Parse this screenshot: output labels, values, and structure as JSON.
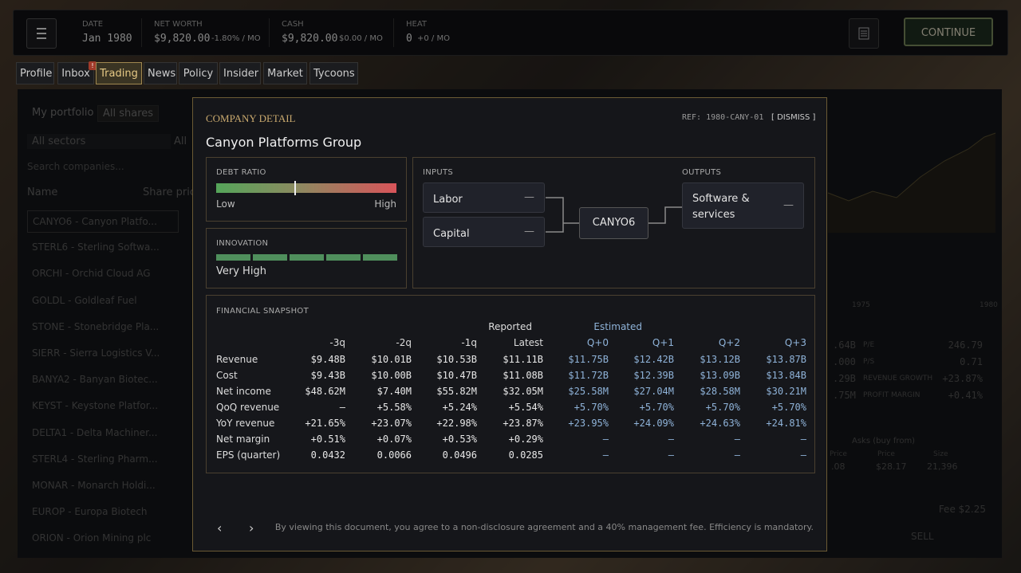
{
  "top_bar": {
    "stats": [
      {
        "label": "DATE",
        "value": "Jan 1980"
      },
      {
        "label": "NET WORTH",
        "value": "$9,820.00",
        "delta": "-1.80% / MO"
      },
      {
        "label": "CASH",
        "value": "$9,820.00",
        "delta": "$0.00 / MO"
      },
      {
        "label": "HEAT",
        "value": "0",
        "delta": "+0 / MO"
      }
    ],
    "continue": "CONTINUE"
  },
  "tabs": {
    "items": [
      "Profile",
      "Inbox",
      "Trading",
      "News",
      "Policy",
      "Insider",
      "Market",
      "Tycoons"
    ],
    "inbox_badge": "!",
    "active": 2
  },
  "background": {
    "filters": [
      "My portfolio",
      "All shares"
    ],
    "sector": "All sectors",
    "other_filter": "All",
    "search": "Search companies...",
    "columns": [
      "Name",
      "Share pric"
    ],
    "companies": [
      "CANYO6 - Canyon Platfo...",
      "STERL6 - Sterling Softwa...",
      "ORCHI - Orchid Cloud AG",
      "GOLDL - Goldleaf Fuel",
      "STONE - Stonebridge Pla...",
      "SIERR - Sierra Logistics V...",
      "BANYA2 - Banyan Biotec...",
      "KEYST - Keystone Platfor...",
      "DELTA1 - Delta Machiner...",
      "STERL4 - Sterling Pharm...",
      "MONAR - Monarch Holdi...",
      "EUROP - Europa Biotech",
      "ORION - Orion Mining plc"
    ],
    "chart_axis": [
      "1975",
      "1980"
    ],
    "partial_values": [
      ".64B",
      ".000",
      ".29B",
      ".75M"
    ],
    "stats": [
      {
        "label": "P/E",
        "value": "246.79"
      },
      {
        "label": "P/S",
        "value": "0.71"
      },
      {
        "label": "REVENUE GROWTH",
        "value": "+23.87%"
      },
      {
        "label": "PROFIT MARGIN",
        "value": "+0.41%"
      }
    ],
    "order_book": {
      "title": "Asks (buy from)",
      "columns": [
        "Price",
        "Price",
        "Size"
      ],
      "row": [
        ".08",
        "$28.17",
        "21,396"
      ]
    },
    "fee": "Fee $2.25",
    "sell": "SELL"
  },
  "modal": {
    "kicker": "COMPANY DETAIL",
    "ref": "REF: 1980-CANY-01",
    "dismiss": "[ DISMISS ]",
    "company": "Canyon Platforms Group",
    "debt": {
      "label": "DEBT RATIO",
      "low": "Low",
      "high": "High"
    },
    "innovation": {
      "label": "INNOVATION",
      "value": "Very High"
    },
    "flow": {
      "inputs_label": "INPUTS",
      "inputs": [
        {
          "name": "Labor",
          "value": "—"
        },
        {
          "name": "Capital",
          "value": "—"
        }
      ],
      "ticker": "CANYO6",
      "outputs_label": "OUTPUTS",
      "outputs": [
        {
          "name": "Software & services",
          "value": "—"
        }
      ]
    },
    "snapshot": {
      "title": "FINANCIAL SNAPSHOT",
      "groups": [
        "Reported",
        "Estimated"
      ],
      "columns": [
        "-3q",
        "-2q",
        "-1q",
        "Latest",
        "Q+0",
        "Q+1",
        "Q+2",
        "Q+3"
      ],
      "rows": [
        {
          "label": "Revenue",
          "cells": [
            "$9.48B",
            "$10.01B",
            "$10.53B",
            "$11.11B",
            "$11.75B",
            "$12.42B",
            "$13.12B",
            "$13.87B"
          ]
        },
        {
          "label": "Cost",
          "cells": [
            "$9.43B",
            "$10.00B",
            "$10.47B",
            "$11.08B",
            "$11.72B",
            "$12.39B",
            "$13.09B",
            "$13.84B"
          ]
        },
        {
          "label": "Net income",
          "cells": [
            "$48.62M",
            "$7.40M",
            "$55.82M",
            "$32.05M",
            "$25.58M",
            "$27.04M",
            "$28.58M",
            "$30.21M"
          ]
        },
        {
          "label": "QoQ revenue",
          "cells": [
            "—",
            "+5.58%",
            "+5.24%",
            "+5.54%",
            "+5.70%",
            "+5.70%",
            "+5.70%",
            "+5.70%"
          ]
        },
        {
          "label": "YoY revenue",
          "cells": [
            "+21.65%",
            "+23.07%",
            "+22.98%",
            "+23.87%",
            "+23.95%",
            "+24.09%",
            "+24.63%",
            "+24.81%"
          ]
        },
        {
          "label": "Net margin",
          "cells": [
            "+0.51%",
            "+0.07%",
            "+0.53%",
            "+0.29%",
            "—",
            "—",
            "—",
            "—"
          ]
        },
        {
          "label": "EPS (quarter)",
          "cells": [
            "0.0432",
            "0.0066",
            "0.0496",
            "0.0285",
            "—",
            "—",
            "—",
            "—"
          ]
        }
      ]
    },
    "nav": [
      "‹",
      "›"
    ],
    "disclaimer": "By viewing this document, you agree to a non-disclosure agreement and a 40% management fee. Efficiency is mandatory."
  }
}
